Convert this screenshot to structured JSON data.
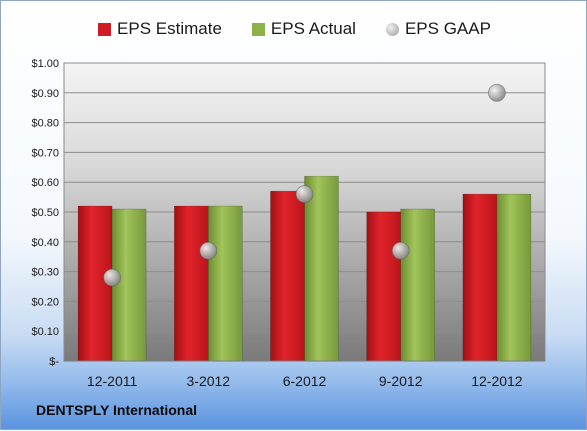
{
  "chart_data": {
    "type": "bar",
    "categories": [
      "12-2011",
      "3-2012",
      "6-2012",
      "9-2012",
      "12-2012"
    ],
    "series": [
      {
        "name": "EPS Estimate",
        "kind": "bar",
        "color": "#d11a22",
        "values": [
          0.52,
          0.52,
          0.57,
          0.5,
          0.56
        ]
      },
      {
        "name": "EPS Actual",
        "kind": "bar",
        "color": "#8db24a",
        "values": [
          0.51,
          0.52,
          0.62,
          0.51,
          0.56
        ]
      },
      {
        "name": "EPS GAAP",
        "kind": "marker",
        "color": "#a9a9a9",
        "values": [
          0.28,
          0.37,
          0.56,
          0.37,
          0.9
        ]
      }
    ],
    "ylim": [
      0,
      1.0
    ],
    "y_ticks": [
      0,
      0.1,
      0.2,
      0.3,
      0.4,
      0.5,
      0.6,
      0.7,
      0.8,
      0.9,
      1.0
    ],
    "y_tick_labels": [
      "$-",
      "$0.10",
      "$0.20",
      "$0.30",
      "$0.40",
      "$0.50",
      "$0.60",
      "$0.70",
      "$0.80",
      "$0.90",
      "$1.00"
    ],
    "grid": true,
    "legend_position": "top"
  },
  "footer": {
    "company": "DENTSPLY International"
  }
}
